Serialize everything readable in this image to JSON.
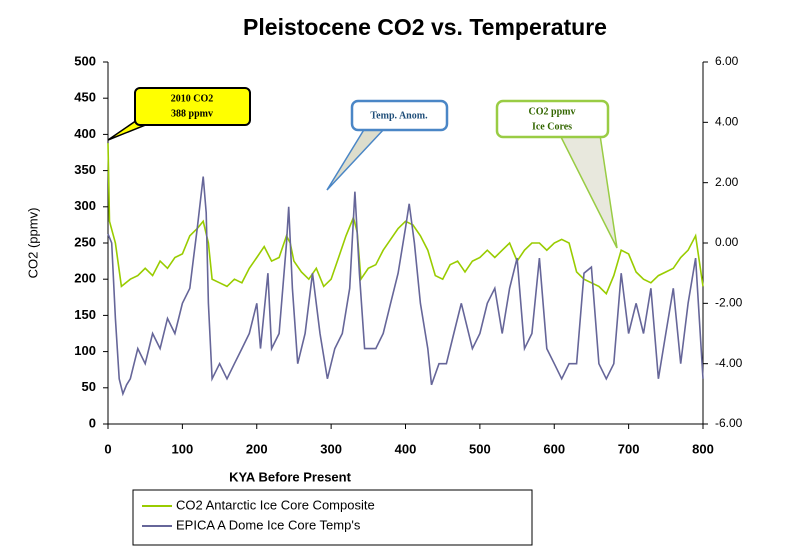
{
  "chart_data": {
    "type": "line",
    "title": "Pleistocene CO2 vs. Temperature",
    "xlabel": "KYA Before Present",
    "ylabel": "CO2 (ppmv)",
    "xlim": [
      0,
      800
    ],
    "xticks": [
      0,
      100,
      200,
      300,
      400,
      500,
      600,
      700,
      800
    ],
    "ylim": [
      0,
      500
    ],
    "yticks": [
      0,
      50,
      100,
      150,
      200,
      250,
      300,
      350,
      400,
      450,
      500
    ],
    "y2lim": [
      -6,
      6
    ],
    "y2ticks": [
      {
        "value": -6,
        "label": "-6.00"
      },
      {
        "value": -4,
        "label": "-4.00"
      },
      {
        "value": -2,
        "label": "-2.00"
      },
      {
        "value": 0,
        "label": "0.00"
      },
      {
        "value": 2,
        "label": "2.00"
      },
      {
        "value": 4,
        "label": "4.00"
      },
      {
        "value": 6,
        "label": "6.00"
      }
    ],
    "grid": false,
    "annotations": [
      [
        "2010 CO2",
        "388 ppmv"
      ],
      [
        "Temp. Anom."
      ],
      [
        "CO2 ppmv",
        "Ice Cores"
      ]
    ],
    "series": [
      {
        "name": "CO2 Antarctic Ice Core Composite",
        "color": "#99cc00",
        "x": [
          0,
          2,
          10,
          18,
          30,
          40,
          50,
          60,
          70,
          80,
          90,
          100,
          110,
          120,
          128,
          135,
          140,
          150,
          160,
          170,
          180,
          190,
          200,
          210,
          220,
          230,
          240,
          245,
          250,
          260,
          270,
          280,
          290,
          300,
          310,
          320,
          330,
          335,
          340,
          350,
          360,
          370,
          380,
          390,
          400,
          410,
          420,
          430,
          440,
          450,
          460,
          470,
          480,
          490,
          500,
          510,
          520,
          530,
          540,
          550,
          560,
          570,
          580,
          590,
          600,
          610,
          620,
          630,
          640,
          650,
          660,
          670,
          680,
          690,
          700,
          710,
          720,
          730,
          740,
          750,
          760,
          770,
          780,
          790,
          800
        ],
        "values": [
          388,
          280,
          250,
          190,
          200,
          205,
          215,
          205,
          225,
          215,
          230,
          235,
          260,
          270,
          280,
          250,
          200,
          195,
          190,
          200,
          195,
          215,
          230,
          245,
          225,
          230,
          260,
          250,
          225,
          210,
          200,
          215,
          190,
          200,
          230,
          260,
          285,
          265,
          200,
          215,
          220,
          240,
          255,
          270,
          280,
          275,
          260,
          240,
          205,
          200,
          220,
          225,
          210,
          225,
          230,
          240,
          230,
          240,
          250,
          225,
          240,
          250,
          250,
          240,
          250,
          255,
          250,
          210,
          200,
          195,
          190,
          180,
          205,
          240,
          235,
          210,
          200,
          195,
          205,
          210,
          215,
          230,
          240,
          260,
          190
        ]
      },
      {
        "name": "EPICA A Dome Ice Core Temp's",
        "color": "#666699",
        "axis": "y2",
        "x": [
          0,
          5,
          10,
          15,
          20,
          25,
          30,
          40,
          50,
          60,
          70,
          80,
          90,
          100,
          110,
          115,
          120,
          128,
          132,
          135,
          140,
          150,
          160,
          170,
          180,
          190,
          200,
          205,
          215,
          220,
          230,
          240,
          243,
          248,
          255,
          265,
          275,
          285,
          295,
          305,
          315,
          325,
          332,
          338,
          345,
          360,
          370,
          380,
          390,
          400,
          405,
          412,
          420,
          430,
          435,
          445,
          455,
          465,
          475,
          490,
          500,
          510,
          520,
          530,
          540,
          550,
          560,
          570,
          580,
          590,
          600,
          610,
          620,
          630,
          640,
          650,
          660,
          670,
          680,
          690,
          700,
          710,
          720,
          730,
          740,
          750,
          760,
          770,
          780,
          790,
          800
        ],
        "values": [
          0.3,
          0.0,
          -2.5,
          -4.5,
          -5.0,
          -4.7,
          -4.5,
          -3.5,
          -4.0,
          -3.0,
          -3.5,
          -2.5,
          -3.0,
          -2.0,
          -1.5,
          -0.5,
          0.5,
          2.2,
          1.0,
          -2.0,
          -4.5,
          -4.0,
          -4.5,
          -4.0,
          -3.5,
          -3.0,
          -2.0,
          -3.5,
          -1.0,
          -3.5,
          -3.0,
          0.0,
          1.2,
          -1.5,
          -4.0,
          -3.0,
          -1.0,
          -3.0,
          -4.5,
          -3.5,
          -3.0,
          -1.5,
          1.7,
          -1.0,
          -3.5,
          -3.5,
          -3.0,
          -2.0,
          -1.0,
          0.5,
          1.3,
          0.0,
          -2.0,
          -3.5,
          -4.7,
          -4.0,
          -4.0,
          -3.0,
          -2.0,
          -3.5,
          -3.0,
          -2.0,
          -1.5,
          -3.0,
          -1.5,
          -0.5,
          -3.5,
          -3.0,
          -0.5,
          -3.5,
          -4.0,
          -4.5,
          -4.0,
          -4.0,
          -1.0,
          -0.8,
          -4.0,
          -4.5,
          -4.0,
          -1.0,
          -3.0,
          -2.0,
          -3.0,
          -1.5,
          -4.5,
          -3.0,
          -1.5,
          -4.0,
          -2.0,
          -0.5,
          -4.5
        ]
      }
    ]
  }
}
